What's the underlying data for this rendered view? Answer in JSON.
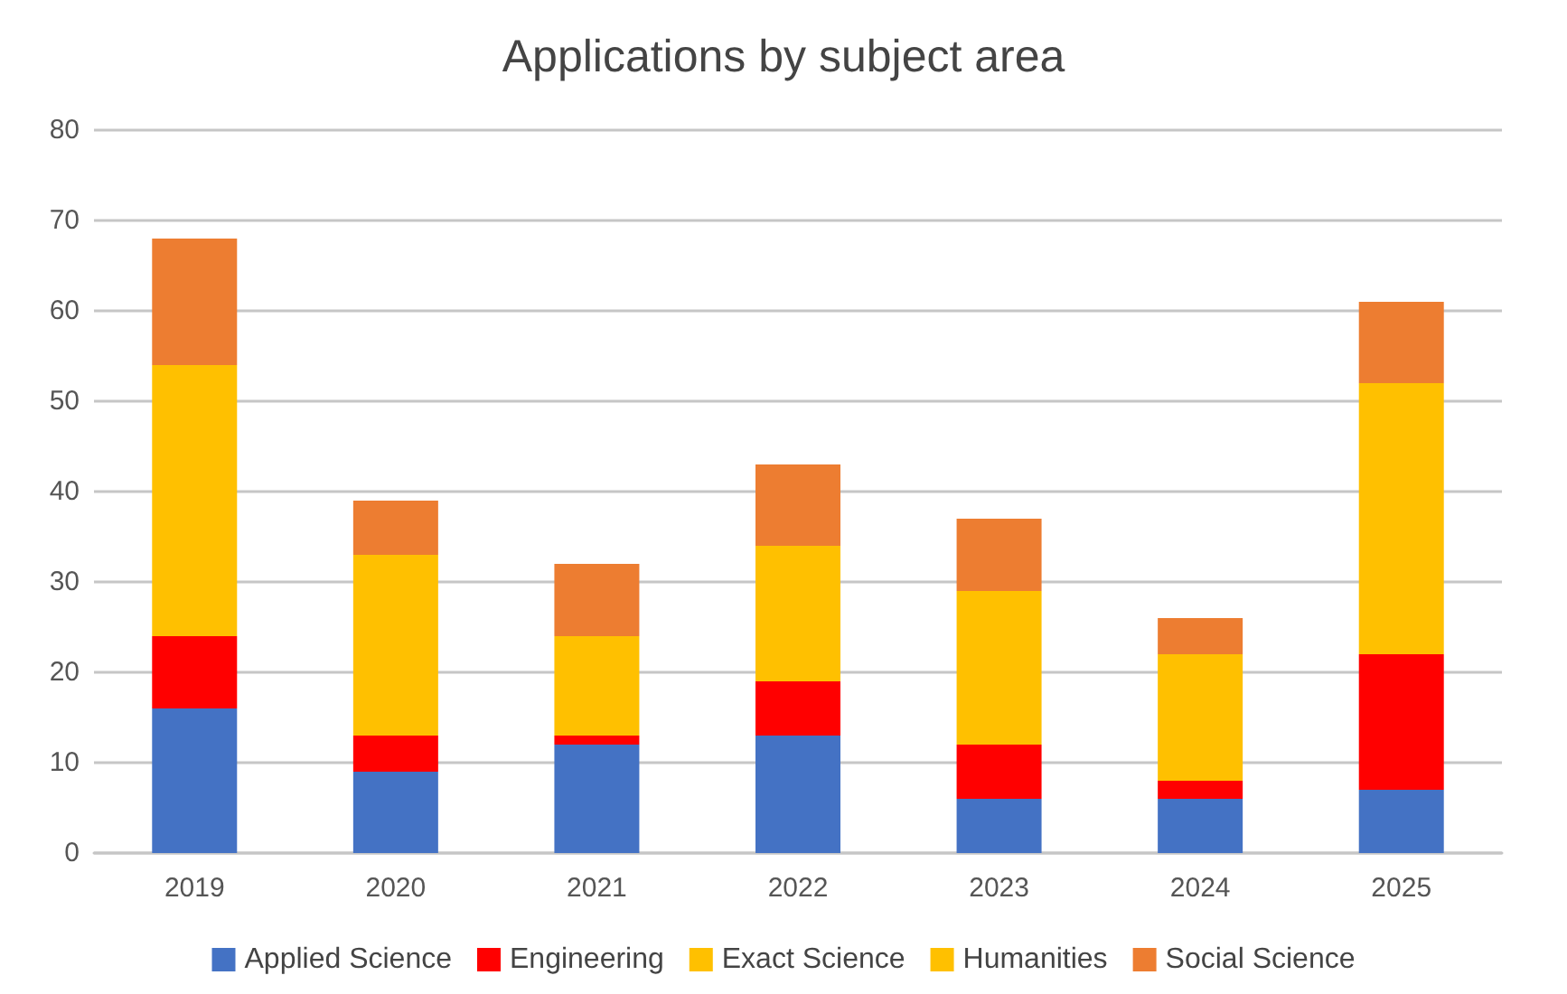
{
  "chart_data": {
    "type": "bar",
    "title": "Applications by subject area",
    "categories": [
      "2019",
      "2020",
      "2021",
      "2022",
      "2023",
      "2024",
      "2025"
    ],
    "stacked": true,
    "series": [
      {
        "name": "Applied Science",
        "color": "#4472c4",
        "values": [
          16,
          9,
          12,
          13,
          6,
          6,
          7
        ]
      },
      {
        "name": "Engineering",
        "color": "#ff0000",
        "values": [
          8,
          4,
          1,
          6,
          6,
          2,
          15
        ]
      },
      {
        "name": "Exact Science",
        "color": "#ffc000",
        "values": [
          30,
          15,
          5,
          9,
          12,
          14,
          30
        ]
      },
      {
        "name": "Humanities",
        "color": "#ffc000",
        "values": [
          0,
          5,
          6,
          6,
          5,
          0,
          0
        ]
      },
      {
        "name": "Social Science",
        "color": "#ed7d31",
        "values": [
          14,
          6,
          8,
          9,
          8,
          4,
          9
        ]
      }
    ],
    "ylim": [
      0,
      80
    ],
    "yticks": [
      0,
      10,
      20,
      30,
      40,
      50,
      60,
      70,
      80
    ],
    "grid": "y",
    "legend": "bottom"
  }
}
